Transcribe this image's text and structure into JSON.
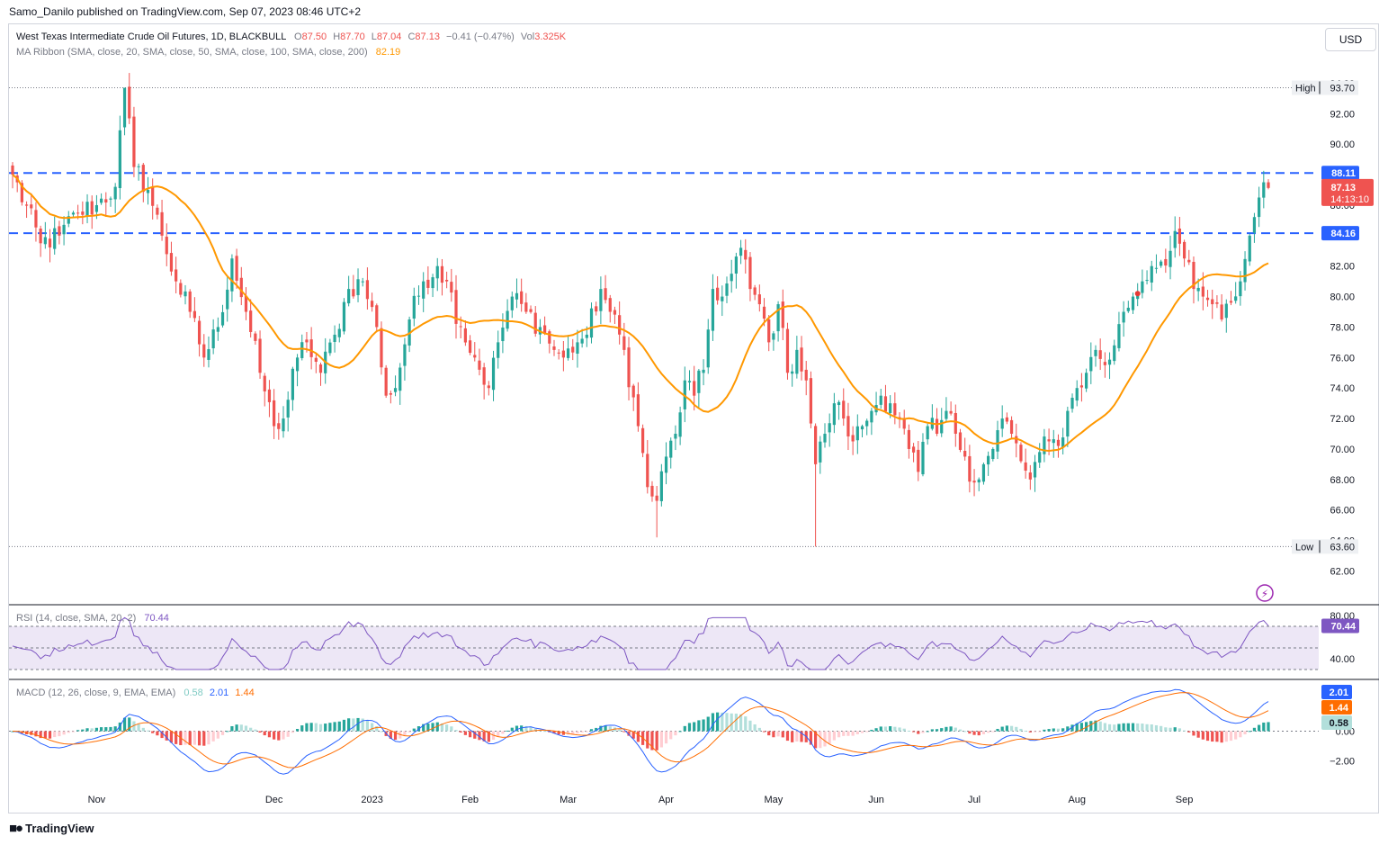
{
  "header": {
    "publisher": "Samo_Danilo published on TradingView.com, Sep 07, 2023 08:46 UTC+2"
  },
  "legend": {
    "symbol": "West Texas Intermediate Crude Oil Futures, 1D, BLACKBULL",
    "open_label": "O",
    "open": "87.50",
    "high_label": "H",
    "high": "87.70",
    "low_label": "L",
    "low": "87.04",
    "close_label": "C",
    "close": "87.13",
    "change": "−0.41 (−0.47%)",
    "vol_label": "Vol",
    "vol": "3.325K",
    "ma": "MA Ribbon (SMA, close, 20, SMA, close, 50, SMA, close, 100, SMA, close, 200)",
    "ma_value": "82.19",
    "rsi": "RSI (14, close, SMA, 20, 2)",
    "rsi_value": "70.44",
    "macd": "MACD (12, 26, close, 9, EMA, EMA)",
    "macd_hist": "0.58",
    "macd_line": "2.01",
    "macd_signal": "1.44"
  },
  "currency": "USD",
  "footer": {
    "brand": "TradingView"
  },
  "colors": {
    "up": "#26a69a",
    "down": "#ef5350",
    "ma": "#ff9800",
    "level": "#2962ff",
    "rsi": "#7e57c2",
    "rsi_band": "#ede7f6",
    "macd": "#2962ff",
    "signal": "#ff6d00",
    "hist_up_strong": "#26a69a",
    "hist_up_weak": "#b2dfdb",
    "hist_down_strong": "#ef5350",
    "hist_down_weak": "#ffcdd2"
  },
  "chart_data": {
    "type": "candlestick",
    "instrument": "West Texas Intermediate Crude Oil Futures",
    "timeframe": "1D",
    "price_axis": {
      "ylim": [
        61.2,
        94.5
      ],
      "ticks": [
        "62.00",
        "64.00",
        "66.00",
        "68.00",
        "70.00",
        "72.00",
        "74.00",
        "76.00",
        "78.00",
        "80.00",
        "82.00",
        "84.00",
        "86.00",
        "88.00",
        "90.00",
        "92.00",
        "94.00"
      ]
    },
    "x_axis_labels": [
      "Nov",
      "Dec",
      "2023",
      "Feb",
      "Mar",
      "Apr",
      "May",
      "Jun",
      "Jul",
      "Aug",
      "Sep"
    ],
    "anchors": [
      [
        0,
        88.0
      ],
      [
        6,
        83.5
      ],
      [
        10,
        84.0
      ],
      [
        14,
        85.5
      ],
      [
        18,
        86.0
      ],
      [
        22,
        87.2
      ],
      [
        24,
        93.7
      ],
      [
        26,
        88.5
      ],
      [
        29,
        87.0
      ],
      [
        32,
        84.0
      ],
      [
        35,
        81.0
      ],
      [
        38,
        79.0
      ],
      [
        41,
        76.0
      ],
      [
        44,
        78.0
      ],
      [
        47,
        82.5
      ],
      [
        50,
        79.0
      ],
      [
        53,
        75.0
      ],
      [
        56,
        71.5
      ],
      [
        58,
        72.0
      ],
      [
        61,
        76.0
      ],
      [
        63,
        77.0
      ],
      [
        66,
        75.0
      ],
      [
        69,
        77.5
      ],
      [
        72,
        80.5
      ],
      [
        75,
        81.0
      ],
      [
        78,
        78.0
      ],
      [
        80,
        73.5
      ],
      [
        82,
        74.0
      ],
      [
        85,
        78.5
      ],
      [
        88,
        81.0
      ],
      [
        91,
        82.0
      ],
      [
        93,
        81.0
      ],
      [
        96,
        78.0
      ],
      [
        99,
        76.0
      ],
      [
        102,
        74.0
      ],
      [
        104,
        77.0
      ],
      [
        107,
        80.0
      ],
      [
        110,
        79.0
      ],
      [
        113,
        78.0
      ],
      [
        116,
        76.5
      ],
      [
        118,
        76.0
      ],
      [
        121,
        77.0
      ],
      [
        123,
        77.5
      ],
      [
        126,
        80.5
      ],
      [
        128,
        79.0
      ],
      [
        131,
        76.5
      ],
      [
        134,
        71.5
      ],
      [
        136,
        67.5
      ],
      [
        138,
        66.6
      ],
      [
        140,
        69.5
      ],
      [
        142,
        71.0
      ],
      [
        144,
        74.5
      ],
      [
        146,
        73.5
      ],
      [
        148,
        75.2
      ],
      [
        150,
        80.5
      ],
      [
        152,
        80.0
      ],
      [
        154,
        81.5
      ],
      [
        156,
        83.2
      ],
      [
        158,
        80.5
      ],
      [
        160,
        79.5
      ],
      [
        162,
        77.0
      ],
      [
        164,
        79.5
      ],
      [
        166,
        75.0
      ],
      [
        168,
        76.5
      ],
      [
        170,
        74.5
      ],
      [
        172,
        69.0
      ],
      [
        174,
        71.0
      ],
      [
        176,
        73.0
      ],
      [
        178,
        72.0
      ],
      [
        180,
        70.5
      ],
      [
        182,
        71.5
      ],
      [
        184,
        72.5
      ],
      [
        186,
        73.5
      ],
      [
        188,
        73.0
      ],
      [
        190,
        72.0
      ],
      [
        192,
        70.0
      ],
      [
        194,
        68.5
      ],
      [
        196,
        71.5
      ],
      [
        198,
        71.0
      ],
      [
        200,
        72.5
      ],
      [
        202,
        71.0
      ],
      [
        204,
        69.5
      ],
      [
        206,
        67.8
      ],
      [
        208,
        69.0
      ],
      [
        210,
        70.0
      ],
      [
        212,
        72.0
      ],
      [
        214,
        71.0
      ],
      [
        216,
        69.2
      ],
      [
        218,
        68.0
      ],
      [
        220,
        69.8
      ],
      [
        222,
        70.5
      ],
      [
        224,
        70.2
      ],
      [
        226,
        72.5
      ],
      [
        228,
        74.0
      ],
      [
        230,
        75.0
      ],
      [
        232,
        76.5
      ],
      [
        234,
        75.5
      ],
      [
        236,
        76.8
      ],
      [
        238,
        79.0
      ],
      [
        240,
        80.0
      ],
      [
        242,
        81.0
      ],
      [
        244,
        82.0
      ],
      [
        246,
        82.3
      ],
      [
        248,
        83.0
      ],
      [
        249,
        84.3
      ],
      [
        251,
        82.5
      ],
      [
        253,
        80.5
      ],
      [
        255,
        80.0
      ],
      [
        257,
        79.5
      ],
      [
        259,
        78.5
      ],
      [
        261,
        79.6
      ],
      [
        263,
        81.0
      ],
      [
        265,
        84.0
      ],
      [
        267,
        86.5
      ],
      [
        268,
        87.5
      ],
      [
        269,
        87.13
      ]
    ],
    "levels": [
      {
        "price": 88.11,
        "label": "88.11",
        "style": "dashed"
      },
      {
        "price": 84.16,
        "label": "84.16",
        "style": "dashed"
      }
    ],
    "high": {
      "label": "High",
      "value": 93.7
    },
    "low": {
      "label": "Low",
      "value": 63.6
    },
    "last_price": {
      "value": "87.13",
      "countdown": "14:13:10"
    },
    "ma_last": 82.19,
    "rsi": {
      "ylim": [
        25,
        85
      ],
      "levels": [
        70,
        50,
        30
      ],
      "ticks": [
        "80.00",
        "40.00"
      ],
      "last": "70.44"
    },
    "macd": {
      "ylim": [
        -3.5,
        3.2
      ],
      "ticks": [
        "0.00",
        "−2.00"
      ],
      "macd_last": "2.01",
      "signal_last": "1.44",
      "hist_last": "0.58"
    }
  }
}
